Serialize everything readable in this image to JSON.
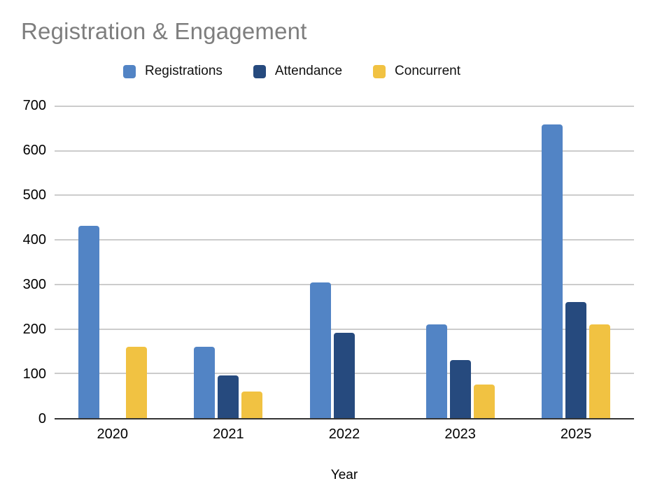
{
  "header": {
    "title": "Registration & Engagement"
  },
  "chart_data": {
    "type": "bar",
    "title": "Registration & Engagement",
    "xlabel": "Year",
    "ylabel": "",
    "categories": [
      "2020",
      "2021",
      "2022",
      "2023",
      "2025"
    ],
    "series": [
      {
        "name": "Registrations",
        "color": "#5284c5",
        "values": [
          432,
          160,
          304,
          210,
          660
        ]
      },
      {
        "name": "Attendance",
        "color": "#264a7e",
        "values": [
          0,
          95,
          191,
          131,
          260
        ]
      },
      {
        "name": "Concurrent",
        "color": "#f1c242",
        "values": [
          160,
          60,
          0,
          75,
          210
        ]
      }
    ],
    "ylim": [
      0,
      700
    ],
    "yticks": [
      0,
      100,
      200,
      300,
      400,
      500,
      600,
      700
    ],
    "grid": "horizontal",
    "legend_position": "top",
    "colors": {
      "gridline": "#cccccc",
      "axis_line": "#333333",
      "title_text": "#7e7e7e",
      "label_text": "#000000"
    }
  }
}
